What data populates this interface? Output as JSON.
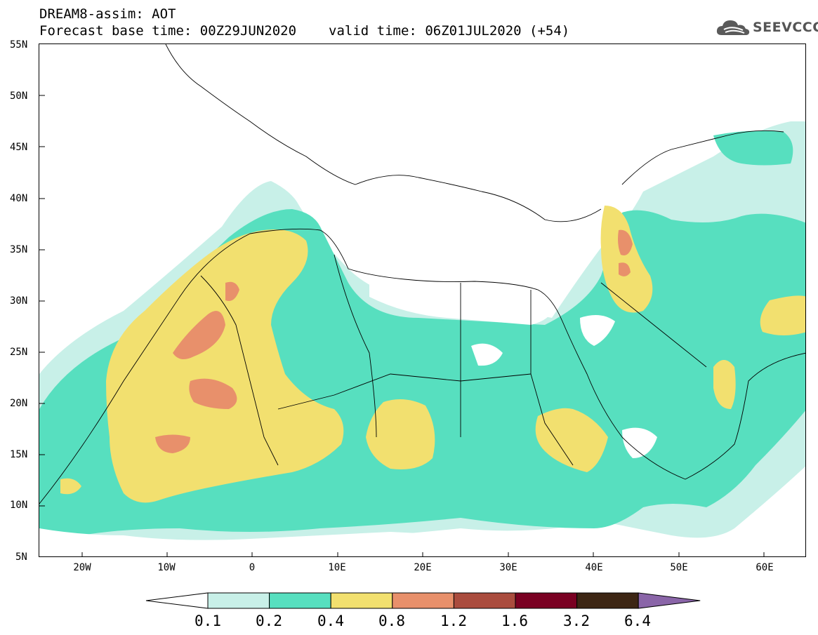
{
  "header": {
    "title_line1": "DREAM8-assim: AOT",
    "title_line2_base": "Forecast base time: 00Z29JUN2020",
    "title_line2_valid": "valid time: 06Z01JUL2020 (+54)",
    "logo_text": "SEEVCCC"
  },
  "map": {
    "lat_labels": [
      "55N",
      "50N",
      "45N",
      "40N",
      "35N",
      "30N",
      "25N",
      "20N",
      "15N",
      "10N",
      "5N"
    ],
    "lon_labels": [
      "20W",
      "10W",
      "0",
      "10E",
      "20E",
      "30E",
      "40E",
      "50E",
      "60E"
    ],
    "lat_range": [
      5,
      55
    ],
    "lon_range": [
      -25,
      65
    ],
    "field": "AOT"
  },
  "colorbar": {
    "levels": [
      "0.1",
      "0.2",
      "0.4",
      "0.8",
      "1.2",
      "1.6",
      "3.2",
      "6.4"
    ],
    "colors": [
      "#c8f0e8",
      "#57dfbf",
      "#f2e06f",
      "#e8906b",
      "#aa4c3e",
      "#7a0022",
      "#3d2614",
      "#8a65a8"
    ]
  }
}
